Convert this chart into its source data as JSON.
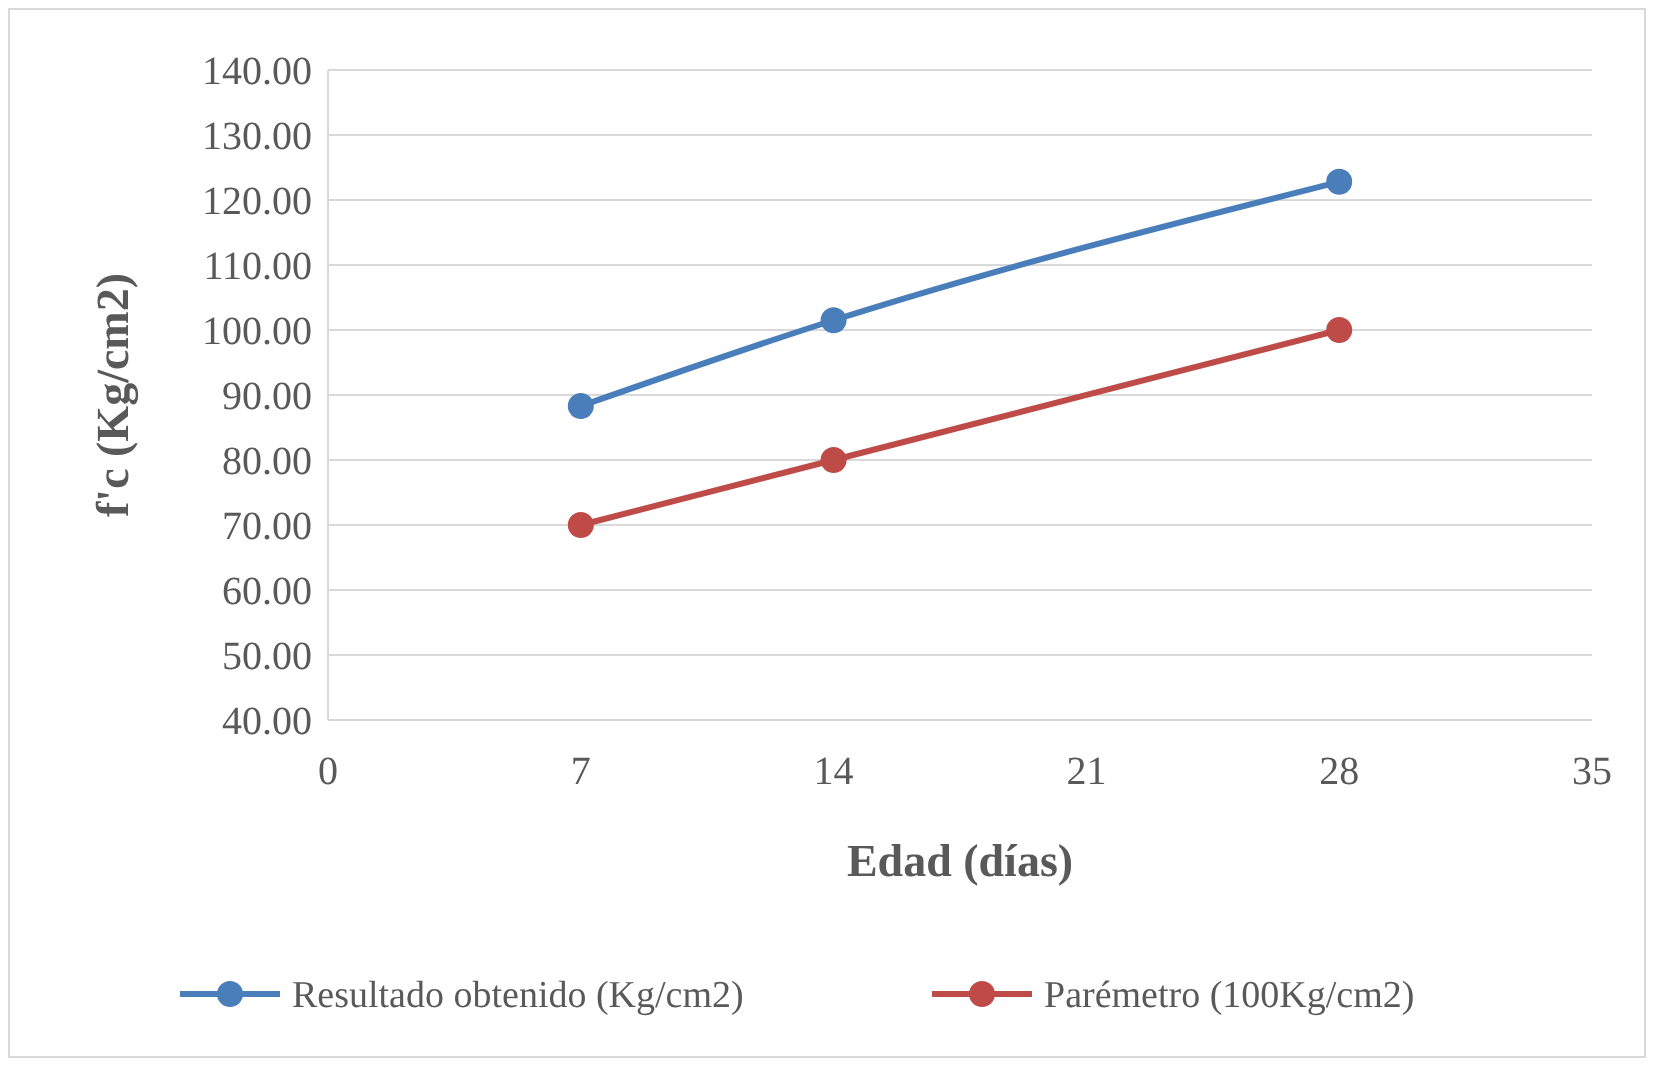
{
  "chart_data": {
    "type": "line",
    "xlabel": "Edad (días)",
    "ylabel": "f'c (Kg/cm2)",
    "x": [
      7,
      14,
      28
    ],
    "series": [
      {
        "name": "Resultado obtenido (Kg/cm2)",
        "color": "#4a7ebb",
        "values": [
          88.3,
          101.5,
          122.8
        ]
      },
      {
        "name": "Parémetro (100Kg/cm2)",
        "color": "#be4b48",
        "values": [
          70,
          80,
          100
        ]
      }
    ],
    "xlim": [
      0,
      35
    ],
    "xticks": [
      0,
      7,
      14,
      21,
      28,
      35
    ],
    "ylim": [
      40,
      140
    ],
    "yticks": [
      {
        "value": 40,
        "label": "40.00"
      },
      {
        "value": 50,
        "label": "50.00"
      },
      {
        "value": 60,
        "label": "60.00"
      },
      {
        "value": 70,
        "label": "70.00"
      },
      {
        "value": 80,
        "label": "80.00"
      },
      {
        "value": 90,
        "label": "90.00"
      },
      {
        "value": 100,
        "label": "100.00"
      },
      {
        "value": 110,
        "label": "110.00"
      },
      {
        "value": 120,
        "label": "120.00"
      },
      {
        "value": 130,
        "label": "130.00"
      },
      {
        "value": 140,
        "label": "140.00"
      }
    ],
    "grid": "y",
    "legend": "bottom",
    "marker": "circle",
    "line_style": "solid"
  }
}
